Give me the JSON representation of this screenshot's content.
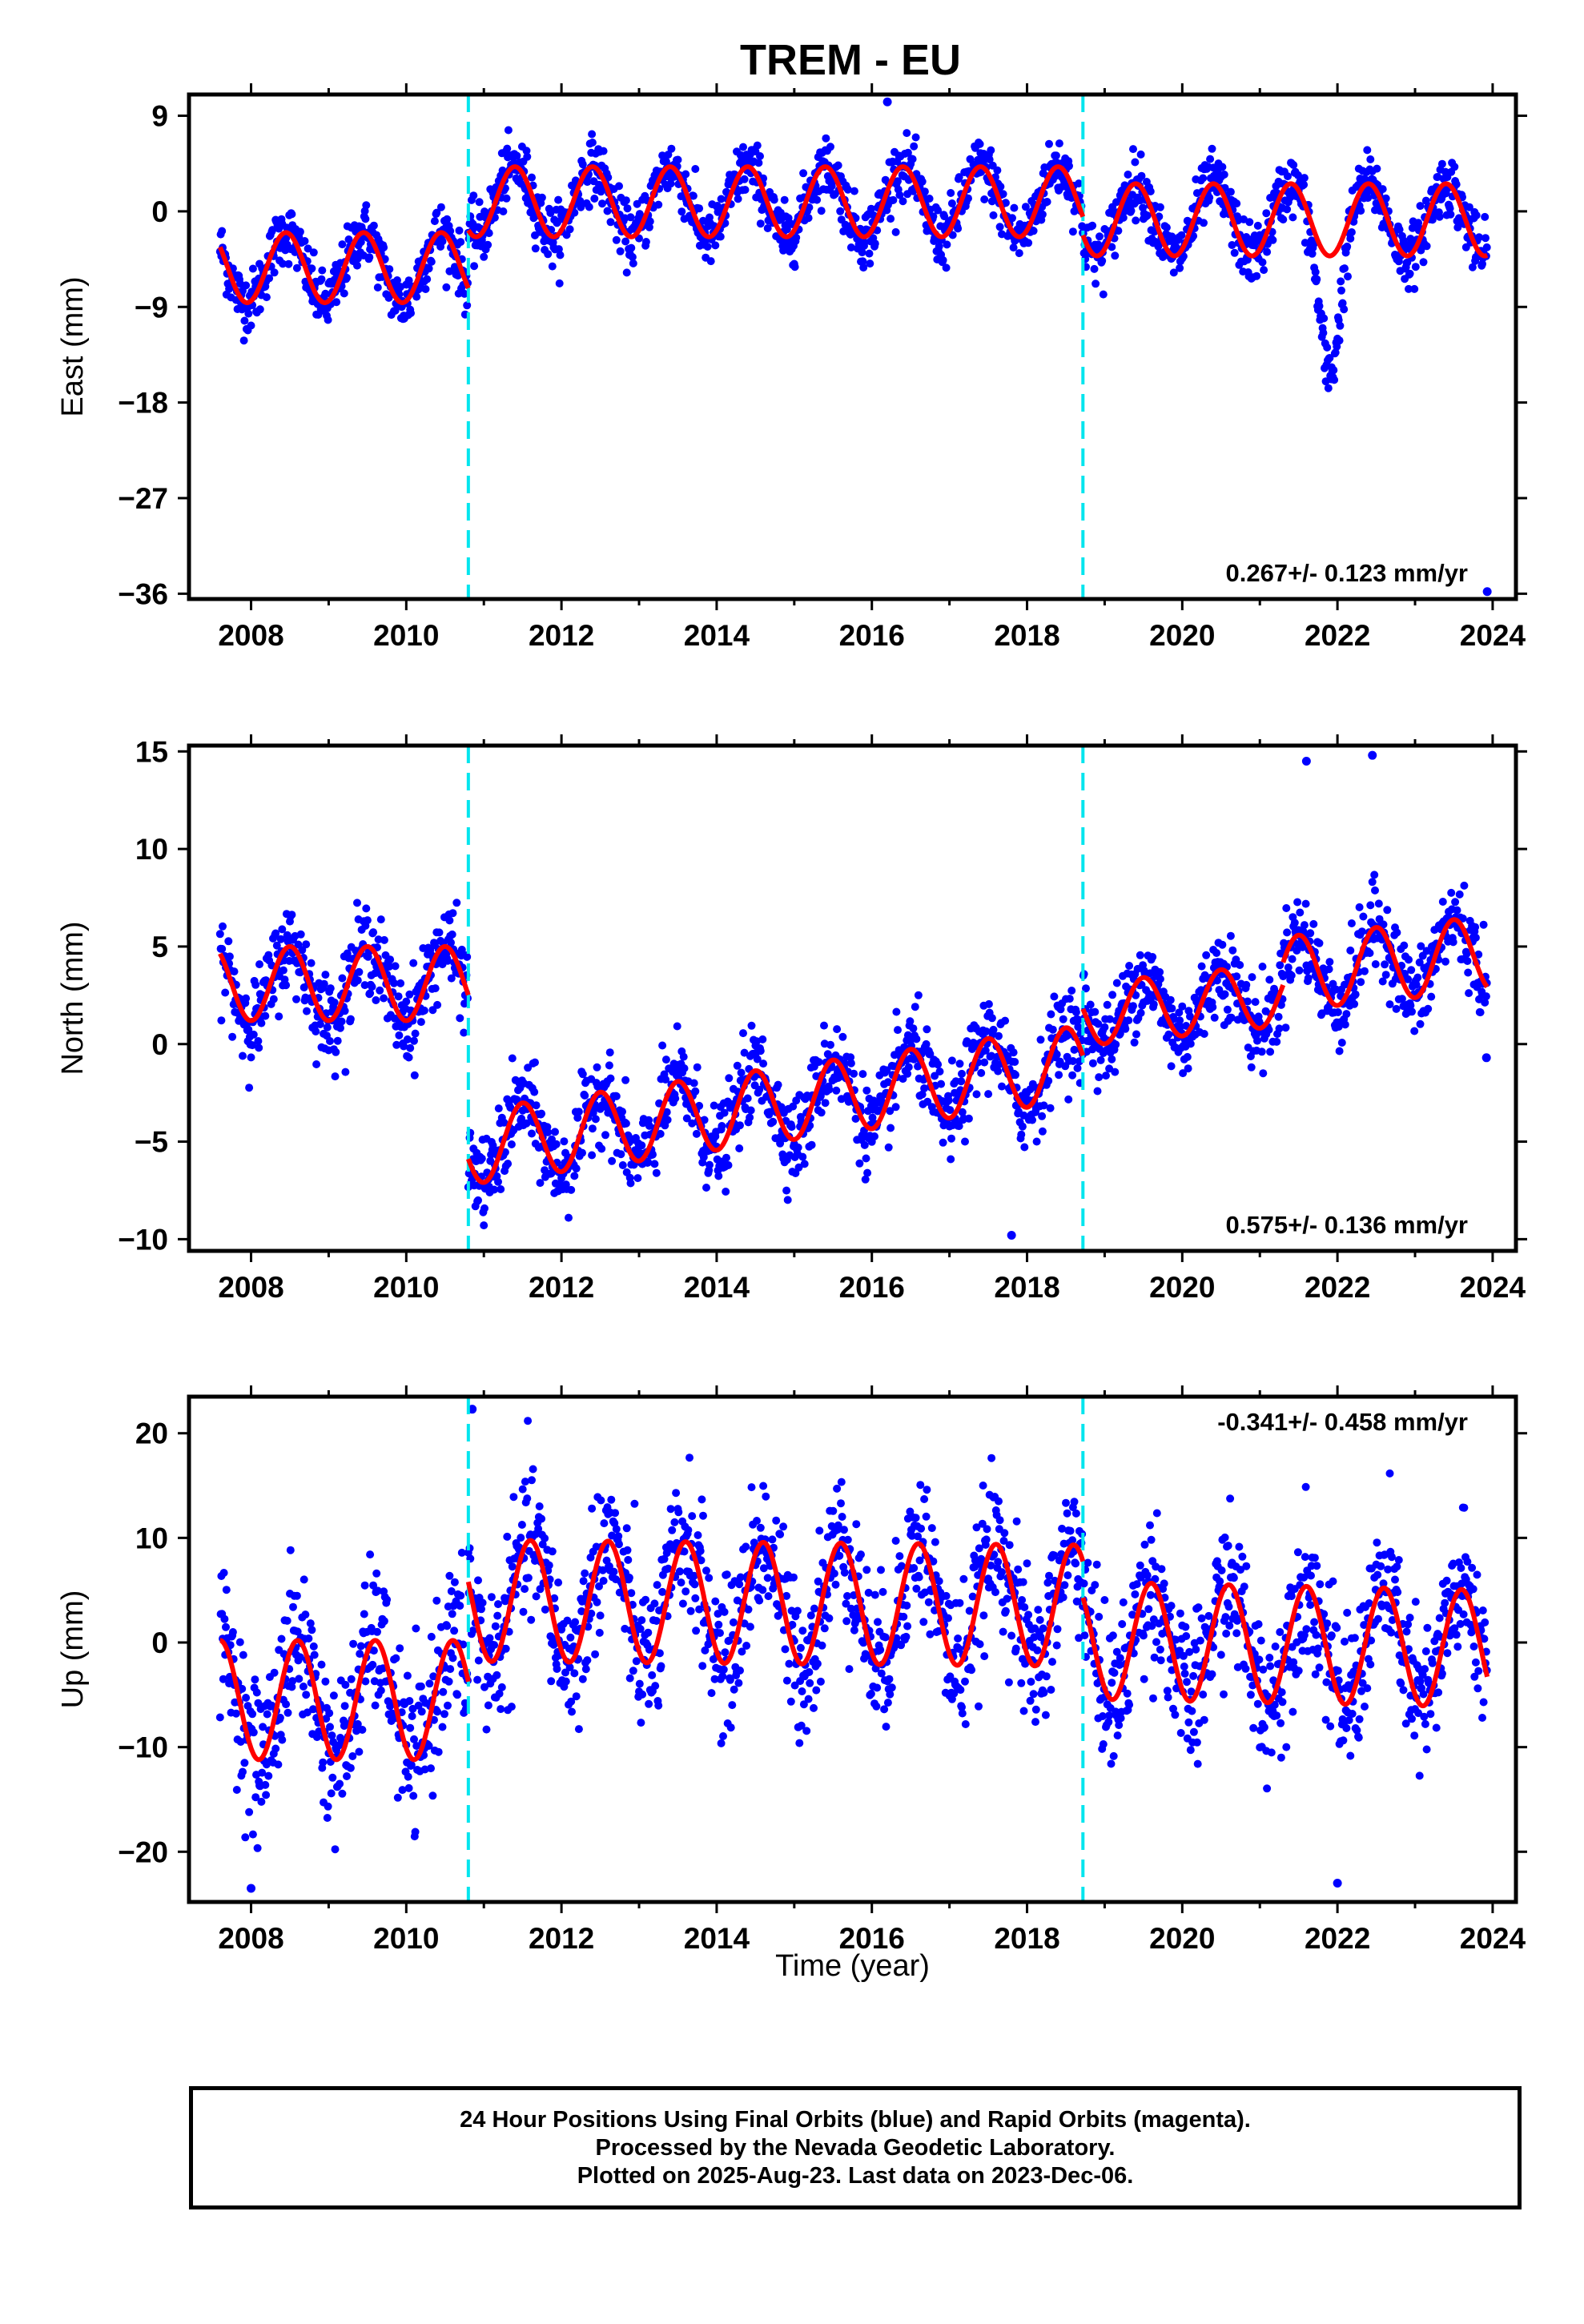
{
  "title": "TREM - EU",
  "xlabel": "Time (year)",
  "colors": {
    "final_orbits": "#0000ff",
    "model": "#ff0000",
    "offset_lines": "#00e5ee"
  },
  "footer": {
    "line1": "24 Hour Positions Using Final Orbits (blue) and Rapid Orbits (magenta).",
    "line2": "Processed by the Nevada Geodetic Laboratory.",
    "line3": "Plotted on 2025-Aug-23. Last data on 2023-Dec-06."
  },
  "chart_data": [
    {
      "type": "scatter",
      "ylabel": "East (mm)",
      "xlim": [
        2007.2,
        2024.3
      ],
      "ylim": [
        -36.5,
        11
      ],
      "xticks": [
        2008,
        2010,
        2012,
        2014,
        2016,
        2018,
        2020,
        2022,
        2024
      ],
      "yticks": [
        9,
        0,
        -9,
        -18,
        -27,
        -36
      ],
      "ytick_labels": [
        "9",
        "0",
        "−9",
        "−18",
        "−27",
        "−36"
      ],
      "rate": "0.267+/- 0.123 mm/yr",
      "rate_position": "bottom-right",
      "offset_epochs": [
        2010.8,
        2018.72
      ],
      "model": {
        "segments": [
          {
            "start": 2007.6,
            "end": 2010.8,
            "base": -5.3,
            "slope": 0.0,
            "amp": 3.3,
            "peak": 2008.45
          },
          {
            "start": 2010.8,
            "end": 2018.72,
            "base": 0.9,
            "slope": 0.0,
            "amp": 3.3,
            "peak": 2011.4
          },
          {
            "start": 2018.72,
            "end": 2023.93,
            "base": -0.8,
            "slope": 0.0,
            "amp": 3.4,
            "peak": 2019.4
          }
        ]
      },
      "anomalies": [
        {
          "center": 2021.9,
          "width": 0.18,
          "depth": -11
        }
      ],
      "scatter_sd": 1.4,
      "outliers": [
        {
          "x": 2016.2,
          "y": 10.3
        },
        {
          "x": 2023.93,
          "y": -35.8
        }
      ]
    },
    {
      "type": "scatter",
      "ylabel": "North (mm)",
      "xlim": [
        2007.2,
        2024.3
      ],
      "ylim": [
        -10.6,
        15.3
      ],
      "xticks": [
        2008,
        2010,
        2012,
        2014,
        2016,
        2018,
        2020,
        2022,
        2024
      ],
      "yticks": [
        15,
        10,
        5,
        0,
        -5,
        -10
      ],
      "ytick_labels": [
        "15",
        "10",
        "5",
        "0",
        "−5",
        "−10"
      ],
      "rate": "0.575+/- 0.136 mm/yr",
      "rate_position": "bottom-right",
      "offset_epochs": [
        2010.8,
        2018.72
      ],
      "model": {
        "segments": [
          {
            "start": 2007.6,
            "end": 2010.8,
            "base": 3.1,
            "slope": 0.0,
            "amp": 1.9,
            "peak": 2008.5
          },
          {
            "start": 2010.8,
            "end": 2018.72,
            "base": -5.3,
            "slope": 0.55,
            "amp": 1.9,
            "peak": 2011.5
          },
          {
            "start": 2018.72,
            "end": 2021.3,
            "base": 1.5,
            "slope": 0.4,
            "amp": 1.6,
            "peak": 2019.5
          },
          {
            "start": 2021.3,
            "end": 2023.93,
            "base": 3.6,
            "slope": 0.4,
            "amp": 1.9,
            "peak": 2021.5
          }
        ]
      },
      "scatter_sd": 1.1,
      "outliers": [
        {
          "x": 2021.6,
          "y": 14.5
        },
        {
          "x": 2022.45,
          "y": 14.8
        },
        {
          "x": 2017.8,
          "y": -9.8
        },
        {
          "x": 2023.92,
          "y": -0.7
        }
      ]
    },
    {
      "type": "scatter",
      "ylabel": "Up (mm)",
      "xlim": [
        2007.2,
        2024.3
      ],
      "ylim": [
        -24.8,
        23.5
      ],
      "xticks": [
        2008,
        2010,
        2012,
        2014,
        2016,
        2018,
        2020,
        2022,
        2024
      ],
      "yticks": [
        20,
        10,
        0,
        -10,
        -20
      ],
      "ytick_labels": [
        "20",
        "10",
        "0",
        "−10",
        "−20"
      ],
      "rate": "-0.341+/- 0.458 mm/yr",
      "rate_position": "top-right",
      "offset_epochs": [
        2010.8,
        2018.72
      ],
      "model": {
        "segments": [
          {
            "start": 2007.6,
            "end": 2010.8,
            "base": -5.5,
            "slope": 0.0,
            "amp": 5.7,
            "peak": 2008.6
          },
          {
            "start": 2010.8,
            "end": 2018.72,
            "base": 4.0,
            "slope": -0.06,
            "amp": 5.8,
            "peak": 2011.6
          },
          {
            "start": 2018.72,
            "end": 2023.93,
            "base": 0.2,
            "slope": -0.15,
            "amp": 5.6,
            "peak": 2019.6
          }
        ]
      },
      "scatter_sd": 3.5,
      "outliers": [
        {
          "x": 2010.85,
          "y": 22.3
        },
        {
          "x": 2008.0,
          "y": -23.5
        },
        {
          "x": 2022.0,
          "y": -23.0
        }
      ]
    }
  ]
}
